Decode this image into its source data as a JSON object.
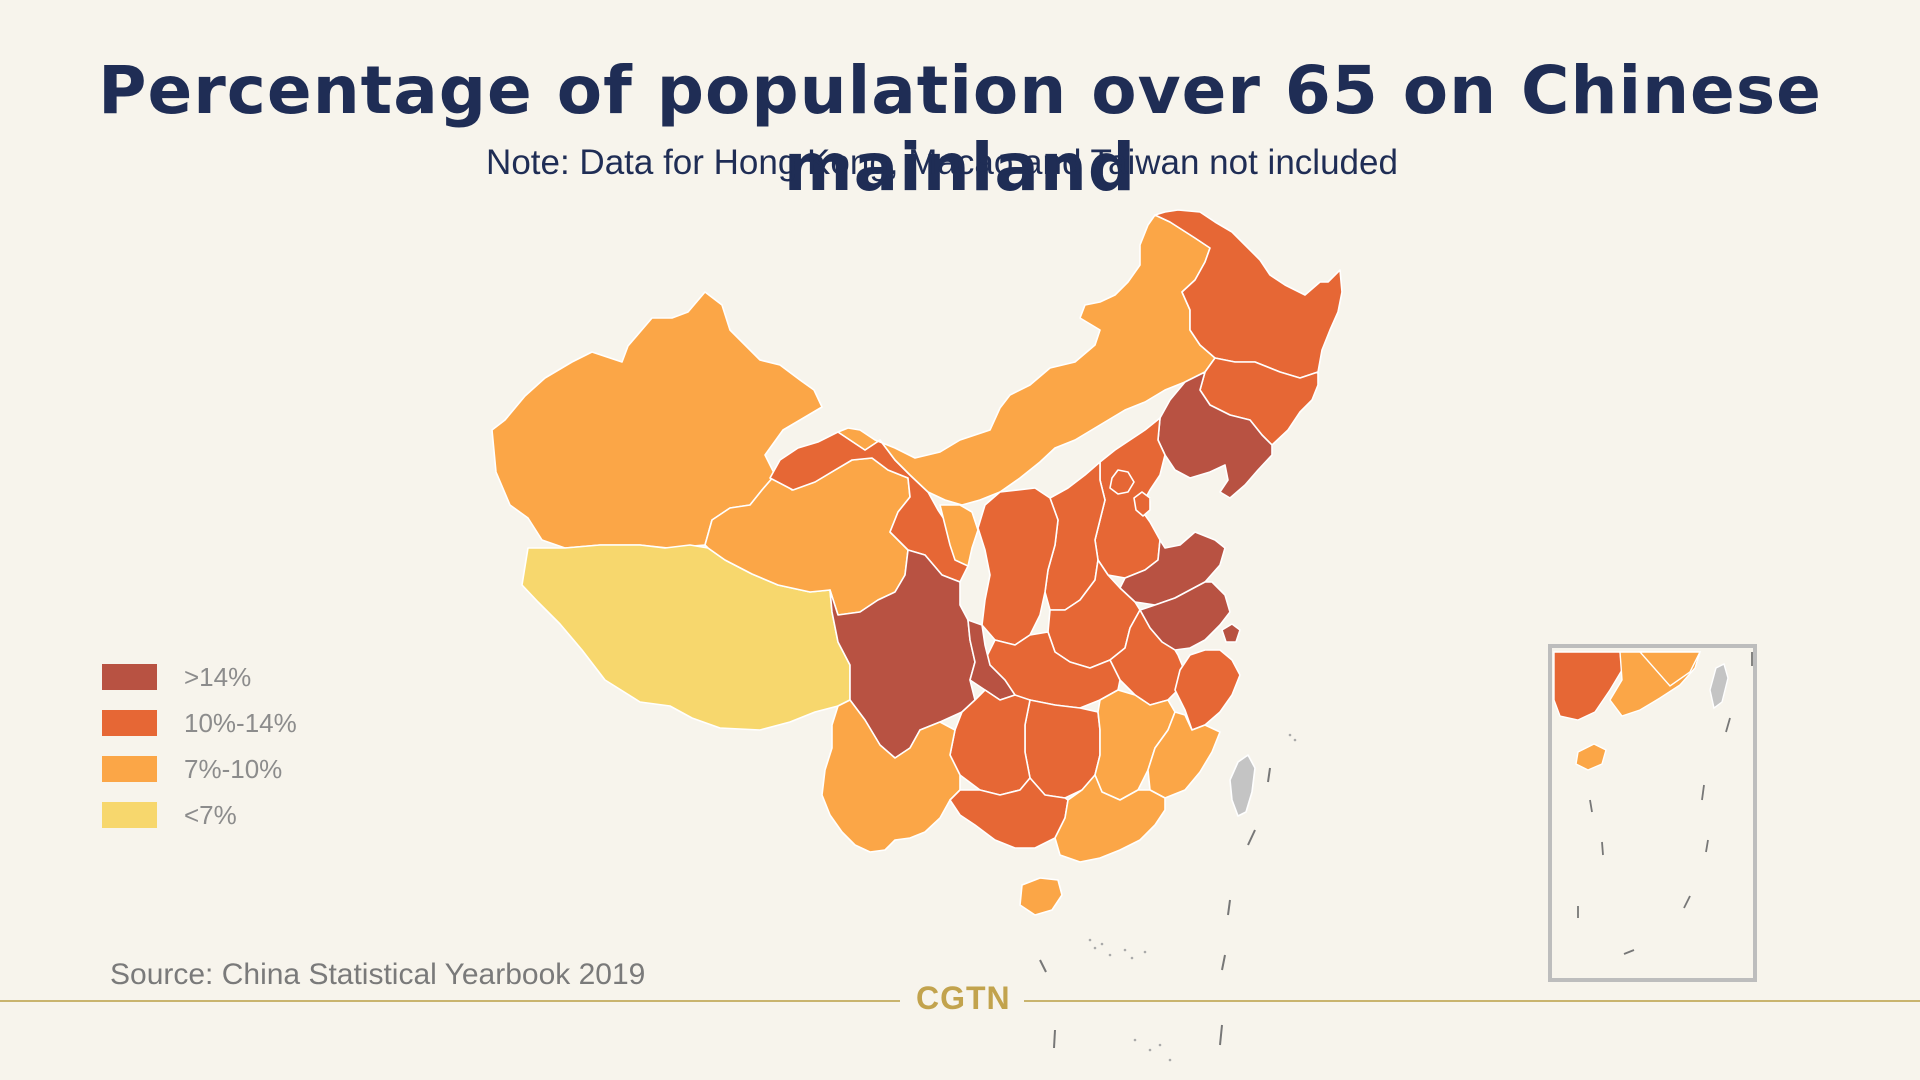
{
  "title": "Percentage of population over 65 on Chinese mainland",
  "subtitle": "Note: Data for Hong Kong, Macao and Taiwan not included",
  "source": "Source: China Statistical Yearbook 2019",
  "brand": "CGTN",
  "colors": {
    "background": "#f7f4ec",
    "gt14": "#b85242",
    "10to14": "#e66735",
    "7to10": "#fba647",
    "lt7": "#f7d76d",
    "excluded": "#c4c4c4",
    "border": "#ffffff",
    "title": "#1f2d55",
    "rule": "#c9b46e"
  },
  "legend": [
    {
      "label": ">14%",
      "color": "#b85242"
    },
    {
      "label": "10%-14%",
      "color": "#e66735"
    },
    {
      "label": "7%-10%",
      "color": "#fba647"
    },
    {
      "label": "<7%",
      "color": "#f7d76d"
    }
  ],
  "map_data": {
    "type": "choropleth",
    "regions": [
      {
        "name": "Heilongjiang",
        "category": "10%-14%"
      },
      {
        "name": "Jilin",
        "category": "10%-14%"
      },
      {
        "name": "Liaoning",
        "category": ">14%"
      },
      {
        "name": "Inner Mongolia",
        "category": "7%-10%"
      },
      {
        "name": "Xinjiang",
        "category": "7%-10%"
      },
      {
        "name": "Tibet",
        "category": "<7%"
      },
      {
        "name": "Qinghai",
        "category": "7%-10%"
      },
      {
        "name": "Gansu",
        "category": "10%-14%"
      },
      {
        "name": "Ningxia",
        "category": "7%-10%"
      },
      {
        "name": "Shaanxi",
        "category": "10%-14%"
      },
      {
        "name": "Shanxi",
        "category": "10%-14%"
      },
      {
        "name": "Hebei",
        "category": "10%-14%"
      },
      {
        "name": "Beijing",
        "category": "10%-14%"
      },
      {
        "name": "Tianjin",
        "category": "10%-14%"
      },
      {
        "name": "Shandong",
        "category": ">14%"
      },
      {
        "name": "Henan",
        "category": "10%-14%"
      },
      {
        "name": "Jiangsu",
        "category": ">14%"
      },
      {
        "name": "Shanghai",
        "category": ">14%"
      },
      {
        "name": "Anhui",
        "category": "10%-14%"
      },
      {
        "name": "Hubei",
        "category": "10%-14%"
      },
      {
        "name": "Sichuan",
        "category": ">14%"
      },
      {
        "name": "Chongqing",
        "category": ">14%"
      },
      {
        "name": "Zhejiang",
        "category": "10%-14%"
      },
      {
        "name": "Hunan",
        "category": "10%-14%"
      },
      {
        "name": "Jiangxi",
        "category": "7%-10%"
      },
      {
        "name": "Fujian",
        "category": "7%-10%"
      },
      {
        "name": "Guizhou",
        "category": "10%-14%"
      },
      {
        "name": "Yunnan",
        "category": "7%-10%"
      },
      {
        "name": "Guangxi",
        "category": "10%-14%"
      },
      {
        "name": "Guangdong",
        "category": "7%-10%"
      },
      {
        "name": "Hainan",
        "category": "7%-10%"
      },
      {
        "name": "Taiwan",
        "category": "not included"
      }
    ]
  }
}
